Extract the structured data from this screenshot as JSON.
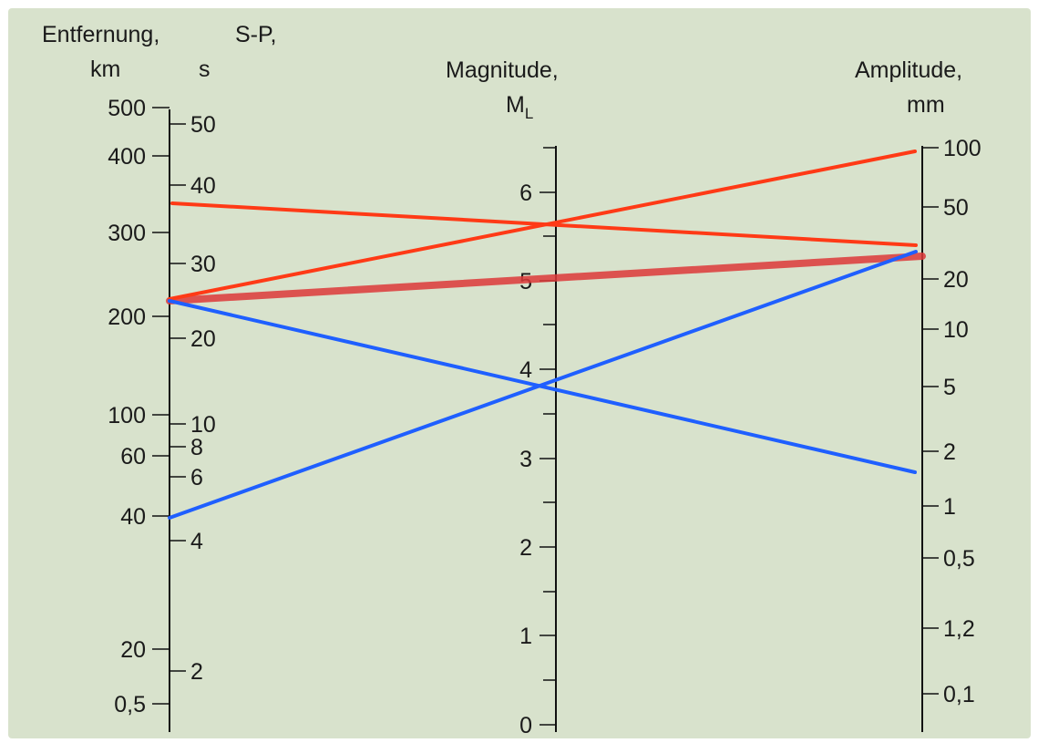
{
  "headers": {
    "distance": "Entfernung,",
    "sp": "S-P,",
    "km_unit": "km",
    "s_unit": "s",
    "magnitude": "Magnitude,",
    "ml_main": "M",
    "ml_sub": "L",
    "amplitude": "Amplitude,",
    "mm_unit": "mm"
  },
  "scales": {
    "km": [
      "500",
      "400",
      "300",
      "200",
      "100",
      "60",
      "40",
      "20",
      "0,5"
    ],
    "s": [
      "50",
      "40",
      "30",
      "20",
      "10",
      "8",
      "6",
      "4",
      "2"
    ],
    "ml": [
      "6",
      "5",
      "4",
      "3",
      "2",
      "1",
      "0"
    ],
    "mm": [
      "100",
      "50",
      "20",
      "10",
      "5",
      "2",
      "1",
      "0,5",
      "1,2",
      "0,1"
    ]
  },
  "colors": {
    "panel": "#d8e2cc",
    "red": "#ff3a16",
    "red_thick": "#dd3a3a",
    "blue": "#1f5fff"
  },
  "lines": [
    {
      "id": "red-line-1",
      "color": "red",
      "from": "~330 km",
      "through": "~5.6 ML",
      "to": "~27 mm"
    },
    {
      "id": "red-line-2",
      "color": "red",
      "from": "~210 km",
      "through": "~5.6 ML",
      "to": "~100 mm"
    },
    {
      "id": "red-line-thick",
      "color": "red_thick",
      "from": "~210 km",
      "through": "~5.0 ML",
      "to": "~25 mm"
    },
    {
      "id": "blue-line-1",
      "color": "blue",
      "from": "~210 km",
      "through": "~3.8 ML",
      "to": "~1.5 mm"
    },
    {
      "id": "blue-line-2",
      "color": "blue",
      "from": "~40 km",
      "through": "~3.8 ML",
      "to": "~25 mm"
    }
  ]
}
